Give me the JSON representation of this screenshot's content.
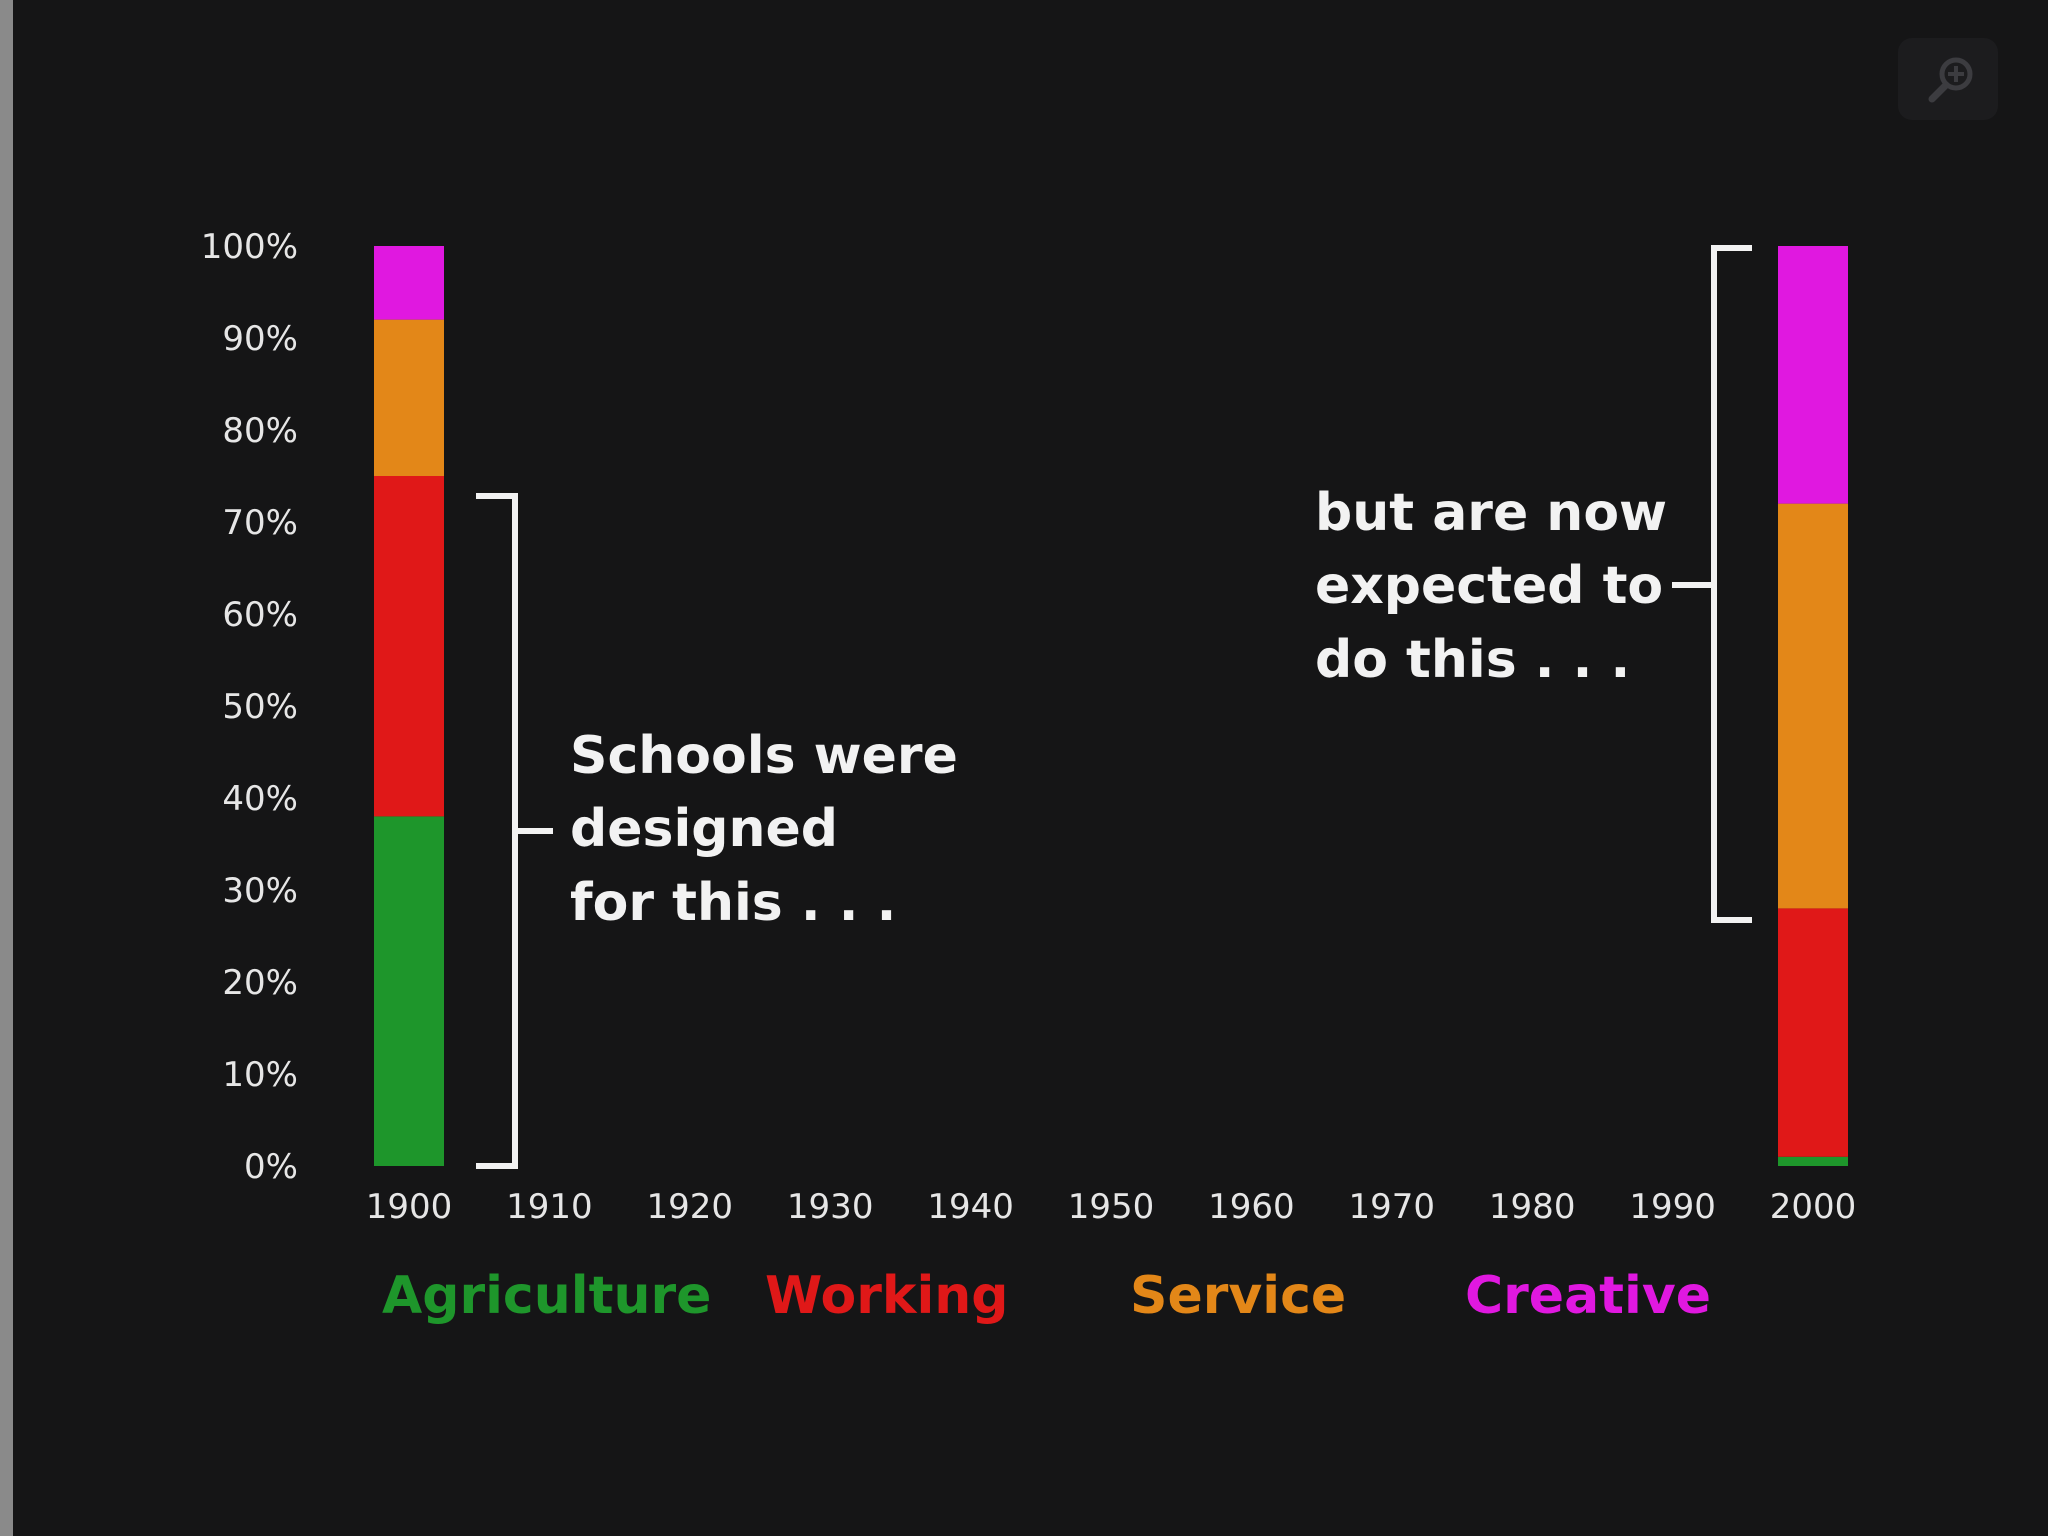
{
  "chart_data": {
    "type": "bar",
    "stacked": true,
    "categories": [
      "1900",
      "2000"
    ],
    "x_ticks": [
      "1900",
      "1910",
      "1920",
      "1930",
      "1940",
      "1950",
      "1960",
      "1970",
      "1980",
      "1990",
      "2000"
    ],
    "y_ticks": [
      "0%",
      "10%",
      "20%",
      "30%",
      "40%",
      "50%",
      "60%",
      "70%",
      "80%",
      "90%",
      "100%"
    ],
    "ylim": [
      0,
      100
    ],
    "series": [
      {
        "name": "Agriculture",
        "color": "#1e962b",
        "values": [
          38,
          1
        ]
      },
      {
        "name": "Working",
        "color": "#e01818",
        "values": [
          37,
          27
        ]
      },
      {
        "name": "Service",
        "color": "#e38718",
        "values": [
          17,
          44
        ]
      },
      {
        "name": "Creative",
        "color": "#e018e0",
        "values": [
          8,
          28
        ]
      }
    ],
    "annotations": [
      {
        "lines": [
          "Schools were",
          "designed",
          "for this . . ."
        ]
      },
      {
        "lines": [
          "but are now",
          "expected to",
          "do this . . ."
        ]
      }
    ],
    "legend_position": "bottom"
  },
  "icons": {
    "zoom": "zoom-in-icon"
  }
}
